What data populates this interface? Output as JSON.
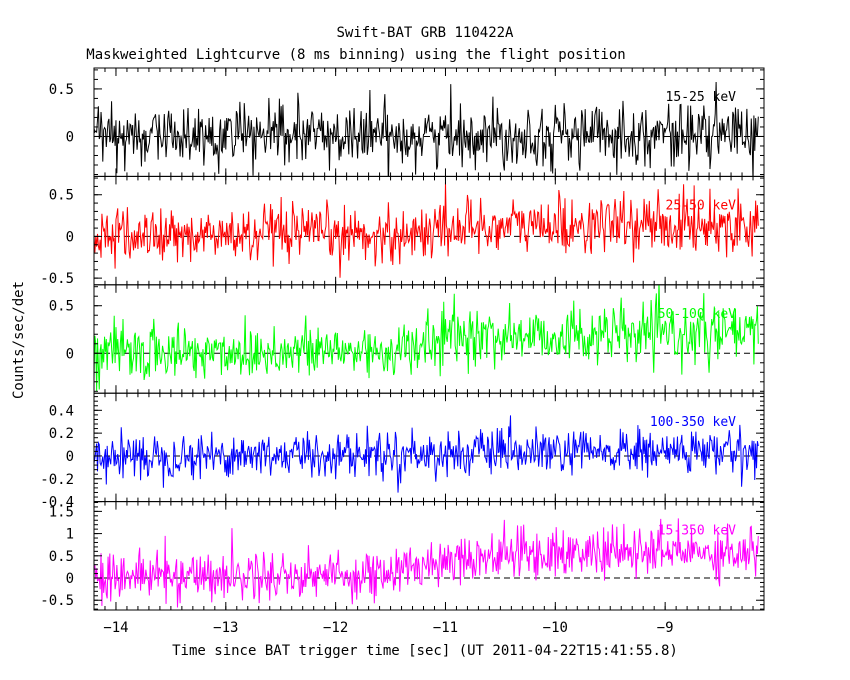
{
  "chart_data": {
    "type": "line",
    "title": "Swift-BAT GRB 110422A",
    "subtitle": "Maskweighted Lightcurve (8 ms binning) using the flight position",
    "xlabel": "Time since BAT trigger time [sec] (UT 2011-04-22T15:41:55.8)",
    "ylabel": "Counts/sec/det",
    "xlim": [
      -14.2,
      -8.1
    ],
    "xticks": [
      -14,
      -13,
      -12,
      -11,
      -10,
      -9
    ],
    "x_start": -14.2,
    "x_end": -8.15,
    "bin_width": 0.008,
    "panels": [
      {
        "name": "15-25 keV",
        "color": "#000000",
        "ylim": [
          -0.42,
          0.72
        ],
        "yticks": [
          0,
          0.5
        ],
        "ytick_labels": [
          "0",
          "0.5"
        ],
        "profile": [
          [
            -14.2,
            0.0
          ],
          [
            -8.15,
            0.03
          ]
        ],
        "noise": 0.16
      },
      {
        "name": "25-50 keV",
        "color": "#ff0000",
        "ylim": [
          -0.58,
          0.72
        ],
        "yticks": [
          -0.5,
          0,
          0.5
        ],
        "ytick_labels": [
          "-0.5",
          "0",
          "0.5"
        ],
        "profile": [
          [
            -14.2,
            0.0
          ],
          [
            -11.3,
            0.02
          ],
          [
            -11.0,
            0.12
          ],
          [
            -8.15,
            0.15
          ]
        ],
        "noise": 0.17
      },
      {
        "name": "50-100 keV",
        "color": "#00ff00",
        "ylim": [
          -0.42,
          0.72
        ],
        "yticks": [
          0,
          0.5
        ],
        "ytick_labels": [
          "0",
          "0.5"
        ],
        "profile": [
          [
            -14.2,
            0.0
          ],
          [
            -11.3,
            0.03
          ],
          [
            -11.0,
            0.18
          ],
          [
            -8.15,
            0.2
          ]
        ],
        "noise": 0.15
      },
      {
        "name": "100-350 keV",
        "color": "#0000ff",
        "ylim": [
          -0.4,
          0.55
        ],
        "yticks": [
          -0.4,
          -0.2,
          0,
          0.2,
          0.4
        ],
        "ytick_labels": [
          "-0.4",
          "-0.2",
          "0",
          "0.2",
          "0.4"
        ],
        "profile": [
          [
            -14.2,
            0.0
          ],
          [
            -8.15,
            0.04
          ]
        ],
        "noise": 0.1
      },
      {
        "name": "15-350 keV",
        "color": "#ff00ff",
        "ylim": [
          -0.72,
          1.72
        ],
        "yticks": [
          -0.5,
          0,
          0.5,
          1,
          1.5
        ],
        "ytick_labels": [
          "-0.5",
          "0",
          "0.5",
          "1",
          "1.5"
        ],
        "profile": [
          [
            -14.2,
            0.05
          ],
          [
            -11.5,
            0.08
          ],
          [
            -11.0,
            0.45
          ],
          [
            -10.3,
            0.55
          ],
          [
            -8.15,
            0.6
          ]
        ],
        "noise": 0.28
      }
    ]
  }
}
